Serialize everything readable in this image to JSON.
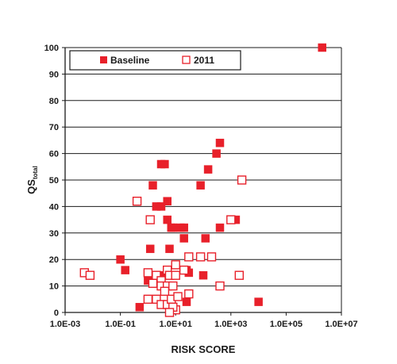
{
  "chart_data": {
    "type": "scatter",
    "title": "",
    "xlabel": "RISK SCORE",
    "ylabel": "QS",
    "ylabel_subscript": "total",
    "xscale": "log",
    "xlim": [
      0.001,
      10000000
    ],
    "ylim": [
      0,
      100
    ],
    "x_ticks": [
      "1.0E-03",
      "1.0E-01",
      "1.0E+01",
      "1.0E+03",
      "1.0E+05",
      "1.0E+07"
    ],
    "y_ticks": [
      "0",
      "10",
      "20",
      "30",
      "40",
      "50",
      "60",
      "70",
      "80",
      "90",
      "100"
    ],
    "grid": "horizontal",
    "legend_position": "top-left",
    "colors": {
      "marker": "#e8202a",
      "axis": "#1a1a1a",
      "grid": "#1a1a1a"
    },
    "series": [
      {
        "name": "Baseline",
        "marker": "filled-square",
        "points": [
          [
            2000000,
            100
          ],
          [
            400,
            64
          ],
          [
            300,
            60
          ],
          [
            150,
            54
          ],
          [
            3,
            56
          ],
          [
            4,
            56
          ],
          [
            80,
            48
          ],
          [
            1.5,
            48
          ],
          [
            5,
            42
          ],
          [
            2,
            40
          ],
          [
            3,
            40
          ],
          [
            5,
            35
          ],
          [
            7,
            32
          ],
          [
            8,
            32
          ],
          [
            15,
            32
          ],
          [
            20,
            32
          ],
          [
            400,
            32
          ],
          [
            1500,
            35
          ],
          [
            120,
            28
          ],
          [
            20,
            28
          ],
          [
            6,
            24
          ],
          [
            1.2,
            24
          ],
          [
            0.1,
            20
          ],
          [
            0.15,
            16
          ],
          [
            25,
            16
          ],
          [
            30,
            15
          ],
          [
            100,
            14
          ],
          [
            3,
            14
          ],
          [
            1,
            12
          ],
          [
            25,
            4
          ],
          [
            10000,
            4
          ],
          [
            0.5,
            2
          ],
          [
            5,
            10
          ]
        ]
      },
      {
        "name": "2011",
        "marker": "open-square",
        "points": [
          [
            2500,
            50
          ],
          [
            0.4,
            42
          ],
          [
            1.2,
            35
          ],
          [
            1000,
            35
          ],
          [
            30,
            21
          ],
          [
            80,
            21
          ],
          [
            200,
            21
          ],
          [
            5,
            16
          ],
          [
            10,
            18
          ],
          [
            20,
            16
          ],
          [
            0.005,
            15
          ],
          [
            0.008,
            14
          ],
          [
            1,
            15
          ],
          [
            2,
            14
          ],
          [
            3,
            12
          ],
          [
            6,
            14
          ],
          [
            10,
            14
          ],
          [
            400,
            10
          ],
          [
            2000,
            14
          ],
          [
            1.5,
            11
          ],
          [
            3,
            10
          ],
          [
            5,
            10
          ],
          [
            8,
            10
          ],
          [
            2,
            5
          ],
          [
            1,
            5
          ],
          [
            3,
            3
          ],
          [
            5,
            3
          ],
          [
            7,
            5
          ],
          [
            10,
            1
          ],
          [
            8,
            2
          ],
          [
            6,
            0
          ],
          [
            4,
            8
          ],
          [
            12,
            6
          ],
          [
            30,
            7
          ]
        ]
      }
    ]
  }
}
